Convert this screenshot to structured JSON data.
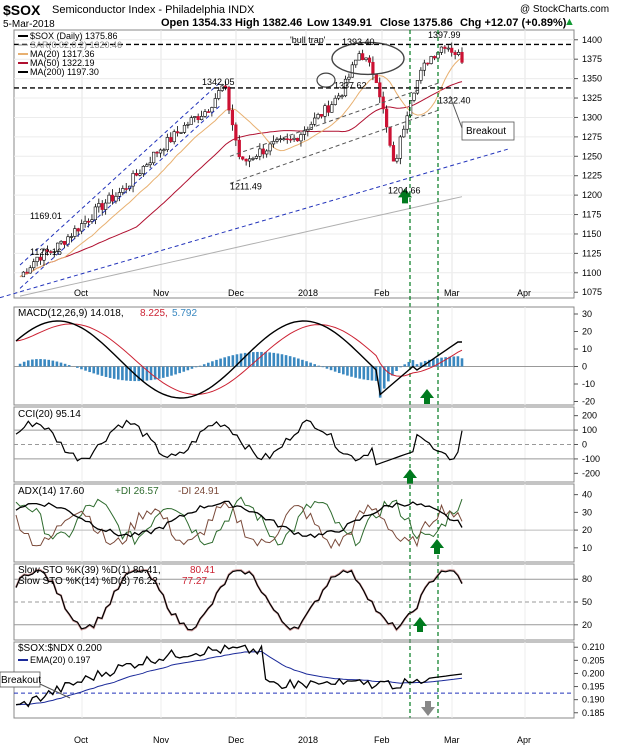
{
  "header": {
    "symbol": "$SOX",
    "name": "Semiconductor Index - Philadelphia INDX",
    "date": "5-Mar-2018",
    "open": "Open 1354.33",
    "high": "High 1382.46",
    "low": "Low 1349.91",
    "close": "Close 1375.86",
    "chg": "Chg +12.07 (+0.89%)",
    "watermark": "@ StockCharts.com",
    "arrow": "▲"
  },
  "colors": {
    "up": "#ffffff",
    "down": "#cc1133",
    "ma20": "#e8b070",
    "ma50": "#b01030",
    "ma200": "#b0b0b0",
    "trend": "#2233bb",
    "signal": "#007a1e",
    "hist": "#3a88c0",
    "osc": "#000000",
    "red": "#cc2233",
    "green": "#2e6b2e",
    "brown": "#7a4a3a"
  },
  "chart_data": [
    {
      "panel": "price",
      "type": "candlestick",
      "x": [
        "2017-09-05",
        "2017-09-12",
        "2017-09-19",
        "2017-09-26",
        "2017-10-03",
        "2017-10-10",
        "2017-10-17",
        "2017-10-24",
        "2017-10-31",
        "2017-11-07",
        "2017-11-14",
        "2017-11-21",
        "2017-11-28",
        "2017-12-05",
        "2017-12-12",
        "2017-12-19",
        "2017-12-26",
        "2018-01-02",
        "2018-01-09",
        "2018-01-16",
        "2018-01-23",
        "2018-01-30",
        "2018-02-06",
        "2018-02-13",
        "2018-02-20",
        "2018-02-27",
        "2018-03-05"
      ],
      "close": [
        1095,
        1120,
        1130,
        1150,
        1170,
        1190,
        1205,
        1230,
        1255,
        1275,
        1295,
        1310,
        1342,
        1240,
        1255,
        1265,
        1270,
        1290,
        1310,
        1335,
        1385,
        1350,
        1235,
        1330,
        1375,
        1395,
        1376
      ],
      "legend": [
        "$SOX (Daily) 1375.86",
        "SAR(0.02,0.2) 1320.46",
        "MA(20) 1317.36",
        "MA(50) 1322.19",
        "MA(200) 1197.30"
      ],
      "annotations": [
        "1169.01",
        "1122.16",
        "1342.05",
        "1211.49",
        "1393.40",
        "'bull trap'",
        "1337.62",
        "1397.99",
        "1322.40",
        "1204.66",
        "Breakout"
      ],
      "yticks": [
        "1400",
        "1375",
        "1350",
        "1325",
        "1300",
        "1275",
        "1250",
        "1225",
        "1200",
        "1175",
        "1150",
        "1125",
        "1100",
        "1075"
      ],
      "ylim": [
        1065,
        1410
      ],
      "xticks": [
        "Oct",
        "Nov",
        "Dec",
        "2018",
        "Feb",
        "Mar",
        "Apr"
      ]
    },
    {
      "panel": "macd",
      "type": "line",
      "title": "MACD(12,26,9)",
      "values": [
        "14.018",
        "8.225",
        "5.792"
      ],
      "yticks": [
        "30",
        "20",
        "10",
        "0",
        "-10",
        "-20"
      ],
      "ylim": [
        -22,
        34
      ]
    },
    {
      "panel": "cci",
      "type": "line",
      "title": "CCI(20)",
      "value": "95.14",
      "yticks": [
        "200",
        "100",
        "0",
        "-100",
        "-200"
      ],
      "ylim": [
        -260,
        260
      ]
    },
    {
      "panel": "adx",
      "type": "line",
      "title": "ADX(14)",
      "values": [
        "17.60",
        "+DI 26.57",
        "-DI 24.91"
      ],
      "yticks": [
        "40",
        "30",
        "20",
        "10"
      ],
      "ylim": [
        2,
        46
      ]
    },
    {
      "panel": "sto",
      "type": "line",
      "line1": "Slow STO %K(39) %D(1) 80.41,",
      "line1b": "80.41",
      "line2": "Slow STO %K(14) %D(3) 76.22,",
      "line2b": "77.27",
      "yticks": [
        "80",
        "50",
        "20"
      ],
      "ylim": [
        0,
        100
      ]
    },
    {
      "panel": "ratio",
      "type": "line",
      "title": "$SOX:$NDX 0.200",
      "ema": "EMA(20) 0.197",
      "annotation": "Breakout",
      "yticks": [
        "0.210",
        "0.205",
        "0.200",
        "0.195",
        "0.190",
        "0.185"
      ],
      "ylim": [
        0.183,
        0.212
      ],
      "xticks": [
        "Oct",
        "Nov",
        "Dec",
        "2018",
        "Feb",
        "Mar",
        "Apr"
      ]
    }
  ]
}
